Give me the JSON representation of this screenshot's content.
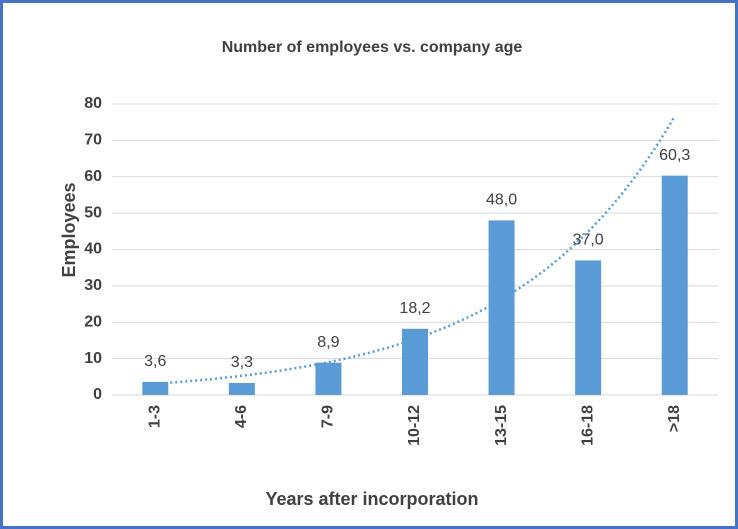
{
  "chart_data": {
    "type": "bar",
    "title": "Number of employees vs. company age",
    "x_label": "Years after incorporation",
    "y_label": "Employees",
    "categories": [
      "1-3",
      "4-6",
      "7-9",
      "10-12",
      "13-15",
      "16-18",
      ">18"
    ],
    "values": [
      3.6,
      3.3,
      8.9,
      18.2,
      48.0,
      37.0,
      60.3
    ],
    "value_labels": [
      "3,6",
      "3,3",
      "8,9",
      "18,2",
      "48,0",
      "37,0",
      "60,3"
    ],
    "color": "#5b9bd5",
    "ylim": [
      0,
      80
    ],
    "yticks": [
      0,
      10,
      20,
      30,
      40,
      50,
      60,
      70,
      80
    ],
    "grid": true,
    "trendline": {
      "type": "exponential",
      "color": "#5b9bd5"
    }
  }
}
